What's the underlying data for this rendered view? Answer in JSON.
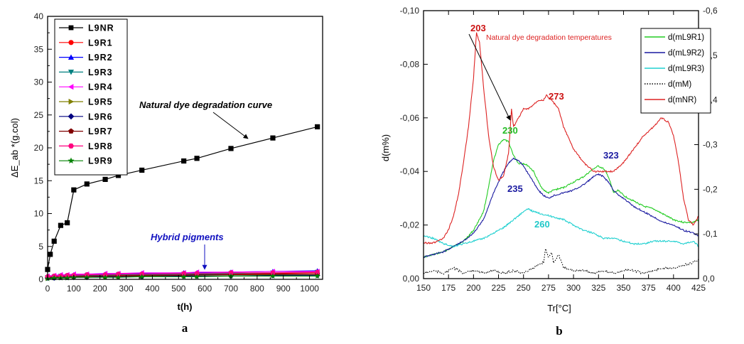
{
  "chart_data": [
    {
      "panel": "a",
      "type": "line",
      "xlabel": "t(h)",
      "ylabel": "ΔE_ab *(g.col)",
      "xlim": [
        0,
        1050
      ],
      "ylim": [
        0,
        40
      ],
      "x_ticks": [
        0,
        100,
        200,
        300,
        400,
        500,
        600,
        700,
        800,
        900,
        1000
      ],
      "y_ticks": [
        0,
        5,
        10,
        15,
        20,
        25,
        30,
        35,
        40
      ],
      "grid": false,
      "legend_position": "top-left",
      "series": [
        {
          "name": "L9NR",
          "color": "#000000",
          "marker": "square",
          "x": [
            0,
            10,
            25,
            50,
            75,
            100,
            150,
            220,
            270,
            360,
            520,
            570,
            700,
            860,
            1030
          ],
          "y": [
            1.5,
            3.8,
            5.8,
            8.2,
            8.6,
            13.6,
            14.5,
            15.2,
            15.8,
            16.6,
            18.0,
            18.4,
            19.9,
            21.5,
            23.2
          ]
        },
        {
          "name": "L9R1",
          "color": "#ff0000",
          "marker": "circle",
          "x": [
            0,
            25,
            50,
            75,
            100,
            150,
            220,
            270,
            360,
            520,
            570,
            700,
            860,
            1030
          ],
          "y": [
            0.3,
            0.4,
            0.4,
            0.5,
            0.5,
            0.5,
            0.5,
            0.6,
            0.6,
            0.7,
            0.7,
            0.8,
            0.9,
            1.0
          ]
        },
        {
          "name": "L9R2",
          "color": "#0000ff",
          "marker": "triangle-up",
          "x": [
            0,
            25,
            50,
            75,
            100,
            150,
            220,
            270,
            360,
            520,
            570,
            700,
            860,
            1030
          ],
          "y": [
            0.4,
            0.5,
            0.6,
            0.6,
            0.7,
            0.7,
            0.8,
            0.8,
            0.9,
            1.0,
            1.0,
            1.1,
            1.2,
            1.3
          ]
        },
        {
          "name": "L9R3",
          "color": "#008080",
          "marker": "triangle-down",
          "x": [
            0,
            25,
            50,
            75,
            100,
            150,
            220,
            270,
            360,
            520,
            570,
            700,
            860,
            1030
          ],
          "y": [
            0.3,
            0.4,
            0.5,
            0.5,
            0.5,
            0.6,
            0.6,
            0.7,
            0.7,
            0.8,
            0.8,
            0.9,
            1.0,
            1.1
          ]
        },
        {
          "name": "L9R4",
          "color": "#ff00ff",
          "marker": "triangle-left",
          "x": [
            0,
            25,
            50,
            75,
            100,
            150,
            220,
            270,
            360,
            520,
            570,
            700,
            860,
            1030
          ],
          "y": [
            0.5,
            0.6,
            0.7,
            0.7,
            0.8,
            0.8,
            0.9,
            0.9,
            1.0,
            1.0,
            1.1,
            1.1,
            1.2,
            1.2
          ]
        },
        {
          "name": "L9R5",
          "color": "#808000",
          "marker": "triangle-right",
          "x": [
            0,
            25,
            50,
            75,
            100,
            150,
            220,
            270,
            360,
            520,
            570,
            700,
            860,
            1030
          ],
          "y": [
            0.2,
            0.3,
            0.3,
            0.4,
            0.4,
            0.4,
            0.5,
            0.5,
            0.5,
            0.6,
            0.6,
            0.7,
            0.7,
            0.8
          ]
        },
        {
          "name": "L9R6",
          "color": "#000080",
          "marker": "diamond",
          "x": [
            0,
            25,
            50,
            75,
            100,
            150,
            220,
            270,
            360,
            520,
            570,
            700,
            860,
            1030
          ],
          "y": [
            0.2,
            0.2,
            0.3,
            0.3,
            0.3,
            0.3,
            0.4,
            0.4,
            0.4,
            0.5,
            0.5,
            0.5,
            0.6,
            0.6
          ]
        },
        {
          "name": "L9R7",
          "color": "#800000",
          "marker": "pentagon",
          "x": [
            0,
            25,
            50,
            75,
            100,
            150,
            220,
            270,
            360,
            520,
            570,
            700,
            860,
            1030
          ],
          "y": [
            0.3,
            0.3,
            0.4,
            0.4,
            0.4,
            0.5,
            0.5,
            0.5,
            0.6,
            0.6,
            0.7,
            0.7,
            0.8,
            0.8
          ]
        },
        {
          "name": "L9R8",
          "color": "#ff0080",
          "marker": "hexagon",
          "x": [
            0,
            25,
            50,
            75,
            100,
            150,
            220,
            270,
            360,
            520,
            570,
            700,
            860,
            1030
          ],
          "y": [
            0.4,
            0.5,
            0.5,
            0.6,
            0.6,
            0.7,
            0.7,
            0.8,
            0.8,
            0.9,
            0.9,
            1.0,
            1.0,
            1.1
          ]
        },
        {
          "name": "L9R9",
          "color": "#008000",
          "marker": "star",
          "x": [
            0,
            25,
            50,
            75,
            100,
            150,
            220,
            270,
            360,
            520,
            570,
            700,
            860,
            1030
          ],
          "y": [
            0.1,
            0.2,
            0.2,
            0.2,
            0.3,
            0.3,
            0.3,
            0.3,
            0.4,
            0.4,
            0.4,
            0.5,
            0.5,
            0.5
          ]
        }
      ],
      "annotations": [
        {
          "text": "Natural dye degradation curve",
          "color": "#000000",
          "arrow_to": [
            820,
            19.9
          ]
        },
        {
          "text": "Hybrid pigments",
          "color": "#1010c0",
          "arrow_to": [
            540,
            1.2
          ]
        }
      ],
      "panel_label": "a"
    },
    {
      "panel": "b",
      "type": "line",
      "xlabel": "Tr[°C]",
      "ylabel": "d(m%)",
      "xlim": [
        150,
        425
      ],
      "ylim": [
        0.0,
        -0.1
      ],
      "y2lim": [
        0.0,
        -0.6
      ],
      "x_ticks": [
        150,
        175,
        200,
        225,
        250,
        275,
        300,
        325,
        350,
        375,
        400,
        425
      ],
      "y_ticks": [
        "0,00",
        "-0,02",
        "-0,04",
        "-0,06",
        "-0,08",
        "-0,10"
      ],
      "y2_ticks": [
        "0,0",
        "-0,1",
        "-0,2",
        "-0,3",
        "-0,4",
        "-0,5",
        "-0,6"
      ],
      "grid": false,
      "legend_position": "top-right",
      "series": [
        {
          "name": "d(mL9R1)",
          "color": "#22cc22",
          "style": "solid",
          "axis": "left",
          "x": [
            150,
            160,
            170,
            180,
            190,
            200,
            210,
            215,
            220,
            225,
            230,
            235,
            240,
            245,
            250,
            255,
            260,
            265,
            270,
            275,
            280,
            290,
            300,
            310,
            320,
            325,
            330,
            335,
            340,
            345,
            350,
            360,
            370,
            380,
            390,
            400,
            410,
            420,
            425
          ],
          "y": [
            -0.008,
            -0.009,
            -0.01,
            -0.012,
            -0.014,
            -0.018,
            -0.025,
            -0.034,
            -0.044,
            -0.05,
            -0.052,
            -0.051,
            -0.046,
            -0.043,
            -0.043,
            -0.042,
            -0.04,
            -0.036,
            -0.033,
            -0.032,
            -0.033,
            -0.034,
            -0.036,
            -0.038,
            -0.041,
            -0.042,
            -0.041,
            -0.038,
            -0.032,
            -0.033,
            -0.031,
            -0.029,
            -0.027,
            -0.026,
            -0.024,
            -0.022,
            -0.021,
            -0.021,
            -0.022
          ]
        },
        {
          "name": "d(mL9R2)",
          "color": "#1a1aa0",
          "style": "solid",
          "axis": "left",
          "x": [
            150,
            160,
            170,
            180,
            190,
            200,
            210,
            220,
            225,
            230,
            235,
            240,
            245,
            250,
            255,
            260,
            265,
            270,
            275,
            280,
            290,
            300,
            310,
            320,
            325,
            330,
            335,
            340,
            345,
            350,
            360,
            370,
            380,
            390,
            400,
            410,
            420,
            425
          ],
          "y": [
            -0.008,
            -0.009,
            -0.01,
            -0.012,
            -0.014,
            -0.017,
            -0.022,
            -0.032,
            -0.036,
            -0.04,
            -0.043,
            -0.045,
            -0.044,
            -0.042,
            -0.039,
            -0.036,
            -0.033,
            -0.031,
            -0.03,
            -0.031,
            -0.032,
            -0.033,
            -0.035,
            -0.038,
            -0.039,
            -0.038,
            -0.036,
            -0.033,
            -0.031,
            -0.03,
            -0.027,
            -0.025,
            -0.023,
            -0.021,
            -0.02,
            -0.018,
            -0.017,
            -0.016
          ]
        },
        {
          "name": "d(mL9R3)",
          "color": "#20d0d0",
          "style": "solid",
          "axis": "left",
          "x": [
            150,
            160,
            170,
            180,
            190,
            200,
            210,
            220,
            230,
            240,
            250,
            255,
            260,
            270,
            280,
            290,
            300,
            310,
            320,
            330,
            340,
            350,
            360,
            370,
            380,
            390,
            400,
            410,
            420,
            425
          ],
          "y": [
            -0.016,
            -0.015,
            -0.013,
            -0.012,
            -0.013,
            -0.014,
            -0.015,
            -0.017,
            -0.019,
            -0.022,
            -0.025,
            -0.026,
            -0.025,
            -0.024,
            -0.023,
            -0.022,
            -0.02,
            -0.018,
            -0.017,
            -0.015,
            -0.015,
            -0.014,
            -0.013,
            -0.013,
            -0.014,
            -0.014,
            -0.014,
            -0.013,
            -0.014,
            -0.012
          ]
        },
        {
          "name": "d(mM)",
          "color": "#000000",
          "style": "dotted",
          "axis": "left",
          "x": [
            150,
            160,
            170,
            180,
            190,
            200,
            210,
            220,
            230,
            240,
            250,
            260,
            270,
            272,
            275,
            278,
            280,
            285,
            290,
            300,
            310,
            320,
            330,
            340,
            350,
            360,
            370,
            380,
            390,
            400,
            410,
            420,
            425
          ],
          "y": [
            -0.002,
            -0.003,
            -0.002,
            -0.004,
            -0.002,
            -0.003,
            -0.002,
            -0.003,
            -0.002,
            -0.003,
            -0.002,
            -0.004,
            -0.006,
            -0.011,
            -0.008,
            -0.01,
            -0.006,
            -0.009,
            -0.004,
            -0.003,
            -0.003,
            -0.002,
            -0.003,
            -0.002,
            -0.003,
            -0.003,
            -0.002,
            -0.003,
            -0.004,
            -0.004,
            -0.005,
            -0.006,
            -0.007
          ]
        },
        {
          "name": "d(mNR)",
          "color": "#dd2222",
          "style": "solid",
          "axis": "right",
          "x": [
            150,
            160,
            170,
            175,
            180,
            185,
            190,
            195,
            200,
            203,
            206,
            210,
            215,
            220,
            225,
            230,
            235,
            238,
            240,
            245,
            250,
            255,
            260,
            265,
            270,
            273,
            278,
            285,
            290,
            300,
            310,
            320,
            330,
            340,
            350,
            360,
            370,
            380,
            388,
            395,
            400,
            405,
            410,
            415,
            420,
            425
          ],
          "y": [
            -0.08,
            -0.08,
            -0.09,
            -0.11,
            -0.14,
            -0.19,
            -0.26,
            -0.34,
            -0.45,
            -0.55,
            -0.53,
            -0.43,
            -0.32,
            -0.25,
            -0.22,
            -0.23,
            -0.28,
            -0.38,
            -0.34,
            -0.36,
            -0.38,
            -0.38,
            -0.39,
            -0.4,
            -0.4,
            -0.41,
            -0.4,
            -0.38,
            -0.34,
            -0.29,
            -0.26,
            -0.24,
            -0.24,
            -0.24,
            -0.26,
            -0.29,
            -0.32,
            -0.34,
            -0.36,
            -0.35,
            -0.32,
            -0.26,
            -0.18,
            -0.13,
            -0.12,
            -0.14
          ]
        }
      ],
      "annotations": [
        {
          "text": "Natural dye degradation temperatures",
          "color": "#dd2222"
        },
        {
          "text": "203",
          "color": "#cc1111"
        },
        {
          "text": "273",
          "color": "#cc1111"
        },
        {
          "text": "230",
          "color": "#22bb22"
        },
        {
          "text": "235",
          "color": "#1a1aa0"
        },
        {
          "text": "323",
          "color": "#1a1aa0"
        },
        {
          "text": "260",
          "color": "#20c8c8"
        }
      ],
      "panel_label": "b"
    }
  ]
}
